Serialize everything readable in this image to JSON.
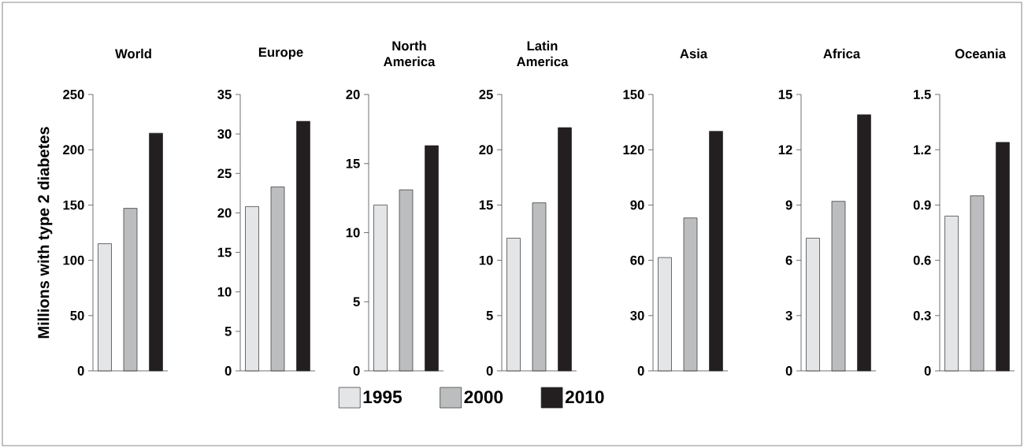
{
  "chart_data": [
    {
      "type": "bar",
      "title": "World",
      "ylabel": "Millions with type 2 diabetes",
      "categories": [
        null
      ],
      "ylim": [
        0,
        250
      ],
      "yticks": [
        0,
        50,
        100,
        150,
        200,
        250
      ],
      "series": [
        {
          "color": "#e4e5e7",
          "values": [
            115
          ]
        },
        {
          "color": "#bcbdbf",
          "values": [
            147
          ]
        },
        {
          "color": "#231f20",
          "values": [
            215
          ]
        }
      ]
    },
    {
      "type": "bar",
      "title": "Europe",
      "categories": [
        null
      ],
      "ylim": [
        0,
        35
      ],
      "yticks": [
        0,
        5,
        10,
        15,
        20,
        25,
        30,
        35
      ],
      "series": [
        {
          "color": "#e4e5e7",
          "values": [
            20.8
          ]
        },
        {
          "color": "#bcbdbf",
          "values": [
            23.3
          ]
        },
        {
          "color": "#231f20",
          "values": [
            31.6
          ]
        }
      ]
    },
    {
      "type": "bar",
      "title": "North America",
      "categories": [
        null
      ],
      "ylim": [
        0,
        20
      ],
      "yticks": [
        0,
        5,
        10,
        15,
        20
      ],
      "series": [
        {
          "color": "#e4e5e7",
          "values": [
            12.0
          ]
        },
        {
          "color": "#bcbdbf",
          "values": [
            13.1
          ]
        },
        {
          "color": "#231f20",
          "values": [
            16.3
          ]
        }
      ]
    },
    {
      "type": "bar",
      "title": "Latin America",
      "categories": [
        null
      ],
      "ylim": [
        0,
        25
      ],
      "yticks": [
        0,
        5,
        10,
        15,
        20,
        25
      ],
      "legend": "bottom",
      "series": [
        {
          "name": "1995",
          "color": "#e4e5e7",
          "values": [
            12.0
          ]
        },
        {
          "name": "2000",
          "color": "#bcbdbf",
          "values": [
            15.2
          ]
        },
        {
          "name": "2010",
          "color": "#231f20",
          "values": [
            22.0
          ]
        }
      ]
    },
    {
      "type": "bar",
      "title": "Asia",
      "categories": [
        null
      ],
      "ylim": [
        0,
        150
      ],
      "yticks": [
        0,
        30,
        60,
        90,
        120,
        150
      ],
      "series": [
        {
          "color": "#e4e5e7",
          "values": [
            61.5
          ]
        },
        {
          "color": "#bcbdbf",
          "values": [
            83
          ]
        },
        {
          "color": "#231f20",
          "values": [
            130
          ]
        }
      ]
    },
    {
      "type": "bar",
      "title": "Africa",
      "categories": [
        null
      ],
      "ylim": [
        0,
        15
      ],
      "yticks": [
        0,
        3,
        6,
        9,
        12,
        15
      ],
      "series": [
        {
          "color": "#e4e5e7",
          "values": [
            7.2
          ]
        },
        {
          "color": "#bcbdbf",
          "values": [
            9.2
          ]
        },
        {
          "color": "#231f20",
          "values": [
            13.9
          ]
        }
      ]
    },
    {
      "type": "bar",
      "title": "Oceania",
      "categories": [
        null
      ],
      "ylim": [
        0,
        1.5
      ],
      "yticks": [
        0,
        0.3,
        0.6,
        0.9,
        1.2,
        1.5
      ],
      "series": [
        {
          "color": "#e4e5e7",
          "values": [
            0.84
          ]
        },
        {
          "color": "#bcbdbf",
          "values": [
            0.95
          ]
        },
        {
          "color": "#231f20",
          "values": [
            1.24
          ]
        }
      ]
    }
  ]
}
